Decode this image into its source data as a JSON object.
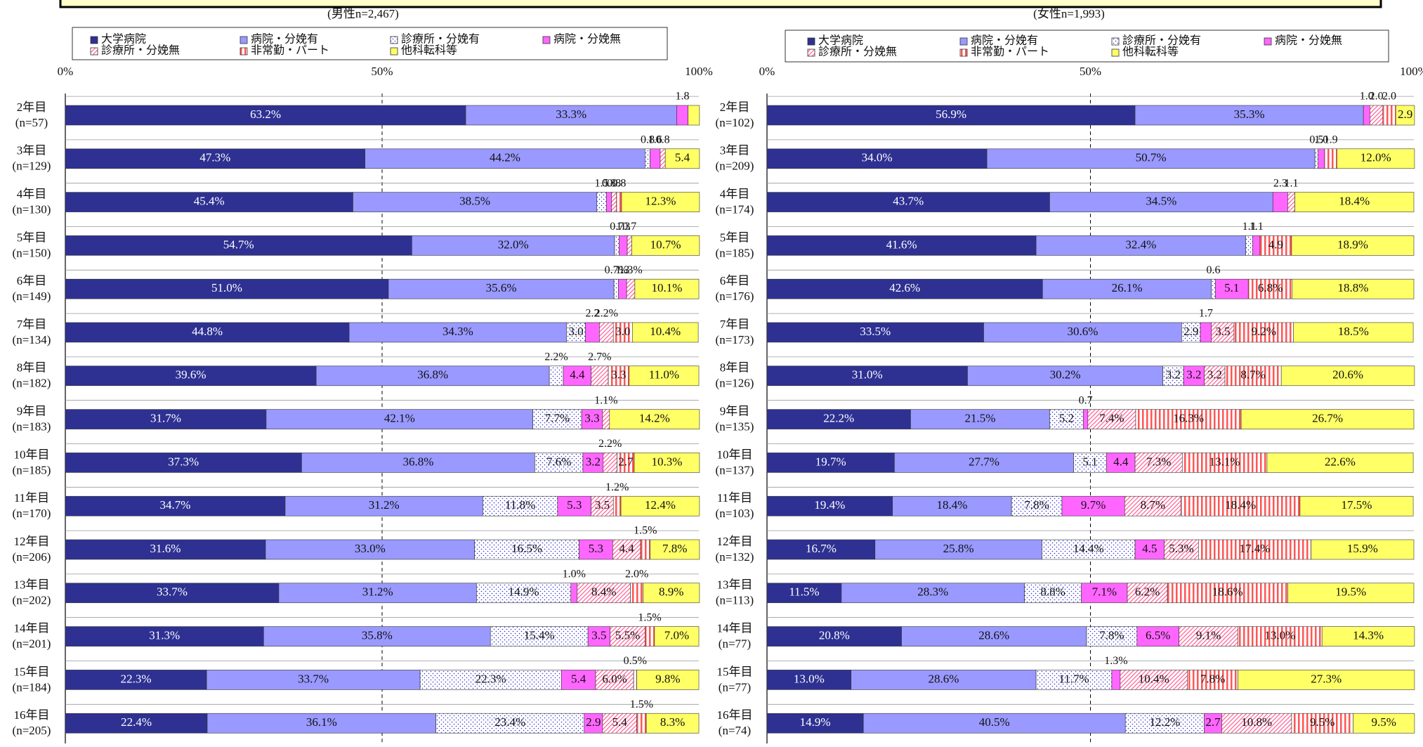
{
  "chart_data": [
    {
      "type": "bar",
      "orientation": "horizontal",
      "stacked": true,
      "subtitle": "(男性n=2,467)",
      "categories": [
        "2年目",
        "3年目",
        "4年目",
        "5年目",
        "6年目",
        "7年目",
        "8年目",
        "9年目",
        "10年目",
        "11年目",
        "12年目",
        "13年目",
        "14年目",
        "15年目",
        "16年目"
      ],
      "category_counts": [
        "(n=57)",
        "(n=129)",
        "(n=130)",
        "(n=150)",
        "(n=149)",
        "(n=134)",
        "(n=182)",
        "(n=183)",
        "(n=185)",
        "(n=170)",
        "(n=206)",
        "(n=202)",
        "(n=201)",
        "(n=184)",
        "(n=205)"
      ],
      "xlim": [
        0,
        100
      ],
      "xticks": [
        {
          "value": 0,
          "label": "0%"
        },
        {
          "value": 50,
          "label": "50%"
        },
        {
          "value": 100,
          "label": "100%"
        }
      ],
      "series": [
        {
          "name": "大学病院",
          "color": "#2e3192",
          "pattern": "solid",
          "values": [
            63.2,
            47.3,
            45.4,
            54.7,
            51.0,
            44.8,
            39.6,
            31.7,
            37.3,
            34.7,
            31.6,
            33.7,
            31.3,
            22.3,
            22.4
          ],
          "value_labels": [
            "63.2%",
            "47.3%",
            "45.4%",
            "54.7%",
            "51.0%",
            "44.8%",
            "39.6%",
            "31.7%",
            "37.3%",
            "34.7%",
            "31.6%",
            "33.7%",
            "31.3%",
            "22.3%",
            "22.4%"
          ]
        },
        {
          "name": "病院・分娩有",
          "color": "#9999ff",
          "pattern": "solid",
          "values": [
            33.3,
            44.2,
            38.5,
            32.0,
            35.6,
            34.3,
            36.8,
            42.1,
            36.8,
            31.2,
            33.0,
            31.2,
            35.8,
            33.7,
            36.1
          ],
          "value_labels": [
            "33.3%",
            "44.2%",
            "38.5%",
            "32.0%",
            "35.6%",
            "34.3%",
            "36.8%",
            "42.1%",
            "36.8%",
            "31.2%",
            "33.0%",
            "31.2%",
            "35.8%",
            "33.7%",
            "36.1%"
          ]
        },
        {
          "name": "診療所・分娩有",
          "color": "#3333cc",
          "pattern": "dots",
          "values": [
            0,
            0.8,
            1.5,
            0.7,
            0.7,
            3.0,
            2.2,
            7.7,
            7.6,
            11.8,
            16.5,
            14.9,
            15.4,
            22.3,
            23.4
          ],
          "value_labels": [
            null,
            "0.8",
            "1.5",
            "0.7",
            "0.7%",
            "3.0",
            "2.2%",
            "7.7%",
            "7.6%",
            "11.8%",
            "16.5%",
            "14.9%",
            "15.4%",
            "22.3%",
            "23.4%"
          ]
        },
        {
          "name": "病院・分娩無",
          "color": "#ff66ff",
          "pattern": "solid",
          "values": [
            1.8,
            1.6,
            0.8,
            1.3,
            1.3,
            2.2,
            4.4,
            3.3,
            3.2,
            5.3,
            5.3,
            1.0,
            3.5,
            5.4,
            2.9
          ],
          "value_labels": [
            "1.8",
            "1.6",
            "0.8",
            "1.3",
            "1.3",
            "2.2",
            "4.4",
            "3.3",
            "3.2",
            "5.3",
            "5.3",
            "1.0%",
            "3.5",
            "5.4",
            "2.9"
          ]
        },
        {
          "name": "診療所・分娩無",
          "color": "#ff6699",
          "pattern": "diagonal",
          "values": [
            0,
            0.8,
            0.8,
            0.7,
            1.3,
            2.2,
            2.7,
            1.1,
            2.2,
            3.5,
            4.4,
            8.4,
            5.5,
            6.0,
            5.4
          ],
          "value_labels": [
            null,
            "0.8",
            "0.8",
            "0.7",
            "1.3%",
            "2.2%",
            "2.7%",
            "1.1%",
            "2.2%",
            "3.5",
            "4.4",
            "8.4%",
            "5.5%",
            "6.0%",
            "5.4"
          ]
        },
        {
          "name": "非常勤・パート",
          "color": "#ff5555",
          "pattern": "vertical",
          "values": [
            0,
            0,
            0.8,
            0,
            0,
            3.0,
            3.3,
            0,
            2.7,
            1.2,
            1.5,
            2.0,
            1.5,
            0.5,
            1.5
          ],
          "value_labels": [
            null,
            null,
            "0.8",
            null,
            null,
            "3.0",
            "3.3",
            null,
            "2.7",
            "1.2%",
            "1.5%",
            "2.0%",
            "1.5%",
            "0.5%",
            "1.5%"
          ]
        },
        {
          "name": "他科転科等",
          "color": "#ffff66",
          "pattern": "solid",
          "values": [
            1.8,
            5.4,
            12.3,
            10.7,
            10.1,
            10.4,
            11.0,
            14.2,
            10.3,
            12.4,
            7.8,
            8.9,
            7.0,
            9.8,
            8.3
          ],
          "value_labels": [
            null,
            "5.4",
            "12.3%",
            "10.7%",
            "10.1%",
            "10.4%",
            "11.0%",
            "14.2%",
            "10.3%",
            "12.4%",
            "7.8%",
            "8.9%",
            "7.0%",
            "9.8%",
            "8.3%"
          ]
        }
      ]
    },
    {
      "type": "bar",
      "orientation": "horizontal",
      "stacked": true,
      "subtitle": "(女性n=1,993)",
      "categories": [
        "2年目",
        "3年目",
        "4年目",
        "5年目",
        "6年目",
        "7年目",
        "8年目",
        "9年目",
        "10年目",
        "11年目",
        "12年目",
        "13年目",
        "14年目",
        "15年目",
        "16年目"
      ],
      "category_counts": [
        "(n=102)",
        "(n=209)",
        "(n=174)",
        "(n=185)",
        "(n=176)",
        "(n=173)",
        "(n=126)",
        "(n=135)",
        "(n=137)",
        "(n=103)",
        "(n=132)",
        "(n=113)",
        "(n=77)",
        "(n=77)",
        "(n=74)"
      ],
      "xlim": [
        0,
        100
      ],
      "xticks": [
        {
          "value": 0,
          "label": "0%"
        },
        {
          "value": 50,
          "label": "50%"
        },
        {
          "value": 100,
          "label": "100%"
        }
      ],
      "series": [
        {
          "name": "大学病院",
          "color": "#2e3192",
          "pattern": "solid",
          "values": [
            56.9,
            34.0,
            43.7,
            41.6,
            42.6,
            33.5,
            31.0,
            22.2,
            19.7,
            19.4,
            16.7,
            11.5,
            20.8,
            13.0,
            14.9
          ],
          "value_labels": [
            "56.9%",
            "34.0%",
            "43.7%",
            "41.6%",
            "42.6%",
            "33.5%",
            "31.0%",
            "22.2%",
            "19.7%",
            "19.4%",
            "16.7%",
            "11.5%",
            "20.8%",
            "13.0%",
            "14.9%"
          ]
        },
        {
          "name": "病院・分娩有",
          "color": "#9999ff",
          "pattern": "solid",
          "values": [
            35.3,
            50.7,
            34.5,
            32.4,
            26.1,
            30.6,
            30.2,
            21.5,
            27.7,
            18.4,
            25.8,
            28.3,
            28.6,
            28.6,
            40.5
          ],
          "value_labels": [
            "35.3%",
            "50.7%",
            "34.5%",
            "32.4%",
            "26.1%",
            "30.6%",
            "30.2%",
            "21.5%",
            "27.7%",
            "18.4%",
            "25.8%",
            "28.3%",
            "28.6%",
            "28.6%",
            "40.5%"
          ]
        },
        {
          "name": "診療所・分娩有",
          "color": "#3333cc",
          "pattern": "dots",
          "values": [
            0,
            0.5,
            0,
            1.1,
            0.6,
            2.9,
            3.2,
            5.2,
            5.1,
            7.8,
            14.4,
            8.8,
            7.8,
            11.7,
            12.2
          ],
          "value_labels": [
            null,
            "0.5",
            null,
            "1.1",
            "0.6",
            "2.9",
            "3.2",
            "5.2",
            "5.1",
            "7.8%",
            "14.4%",
            "8.8%",
            "7.8%",
            "11.7%",
            "12.2%"
          ]
        },
        {
          "name": "病院・分娩無",
          "color": "#ff66ff",
          "pattern": "solid",
          "values": [
            1.0,
            1.0,
            2.3,
            1.1,
            5.1,
            1.7,
            3.2,
            0.7,
            4.4,
            9.7,
            4.5,
            7.1,
            6.5,
            1.3,
            2.7
          ],
          "value_labels": [
            "1.0",
            "1.0",
            "2.3",
            "1.1",
            "5.1",
            "1.7",
            "3.2",
            "0.7",
            "4.4",
            "9.7%",
            "4.5",
            "7.1%",
            "6.5%",
            "1.3%",
            "2.7"
          ]
        },
        {
          "name": "診療所・分娩無",
          "color": "#ff6699",
          "pattern": "diagonal",
          "values": [
            2.0,
            0,
            1.1,
            0,
            0,
            3.5,
            3.2,
            7.4,
            7.3,
            8.7,
            5.3,
            6.2,
            9.1,
            10.4,
            10.8
          ],
          "value_labels": [
            "2.0",
            null,
            "1.1",
            null,
            null,
            "3.5",
            "3.2",
            "7.4%",
            "7.3%",
            "8.7%",
            "5.3%",
            "6.2%",
            "9.1%",
            "10.4%",
            "10.8%"
          ]
        },
        {
          "name": "非常勤・パート",
          "color": "#ff5555",
          "pattern": "vertical",
          "values": [
            2.0,
            1.9,
            0,
            4.9,
            6.8,
            9.2,
            8.7,
            16.3,
            13.1,
            18.4,
            17.4,
            18.6,
            13.0,
            7.8,
            9.5
          ],
          "value_labels": [
            "2.0",
            "1.9",
            null,
            "4.9",
            "6.8%",
            "9.2%",
            "8.7%",
            "16.3%",
            "13.1%",
            "18.4%",
            "17.4%",
            "18.6%",
            "13.0%",
            "7.8%",
            "9.5%"
          ]
        },
        {
          "name": "他科転科等",
          "color": "#ffff66",
          "pattern": "solid",
          "values": [
            2.9,
            12.0,
            18.4,
            18.9,
            18.8,
            18.5,
            20.6,
            26.7,
            22.6,
            17.5,
            15.9,
            19.5,
            14.3,
            27.3,
            9.5
          ],
          "value_labels": [
            "2.9",
            "12.0%",
            "18.4%",
            "18.9%",
            "18.8%",
            "18.5%",
            "20.6%",
            "26.7%",
            "22.6%",
            "17.5%",
            "15.9%",
            "19.5%",
            "14.3%",
            "27.3%",
            "9.5%"
          ]
        }
      ]
    }
  ]
}
